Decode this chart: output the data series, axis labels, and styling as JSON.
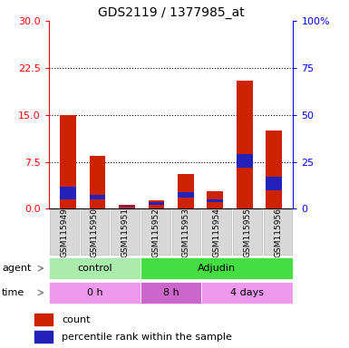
{
  "title": "GDS2119 / 1377985_at",
  "samples": [
    "GSM115949",
    "GSM115950",
    "GSM115951",
    "GSM115952",
    "GSM115953",
    "GSM115954",
    "GSM115955",
    "GSM115956"
  ],
  "count_values": [
    15.0,
    8.5,
    0.7,
    1.4,
    5.5,
    2.8,
    20.5,
    12.5
  ],
  "percentile_values_scaled": [
    2.1,
    0.75,
    0.15,
    0.45,
    0.9,
    0.5,
    2.3,
    2.1
  ],
  "percentile_bottom_scaled": [
    1.5,
    1.5,
    0.3,
    0.6,
    1.8,
    1.0,
    6.5,
    3.0
  ],
  "left_ylim": [
    0,
    30
  ],
  "right_ylim": [
    0,
    100
  ],
  "left_yticks": [
    0,
    7.5,
    15,
    22.5,
    30
  ],
  "right_yticks": [
    0,
    25,
    50,
    75,
    100
  ],
  "right_yticklabels": [
    "0",
    "25",
    "50",
    "75",
    "100%"
  ],
  "bar_color": "#cc2200",
  "percentile_color": "#2222bb",
  "agent_groups": [
    {
      "label": "control",
      "start": 0,
      "end": 3,
      "color": "#aaeaaa"
    },
    {
      "label": "Adjudin",
      "start": 3,
      "end": 8,
      "color": "#44dd44"
    }
  ],
  "time_groups": [
    {
      "label": "0 h",
      "start": 0,
      "end": 3,
      "color": "#ee99ee"
    },
    {
      "label": "8 h",
      "start": 3,
      "end": 5,
      "color": "#cc66cc"
    },
    {
      "label": "4 days",
      "start": 5,
      "end": 8,
      "color": "#ee99ee"
    }
  ],
  "bar_width": 0.55,
  "fig_width": 3.85,
  "fig_height": 3.84,
  "dpi": 100
}
